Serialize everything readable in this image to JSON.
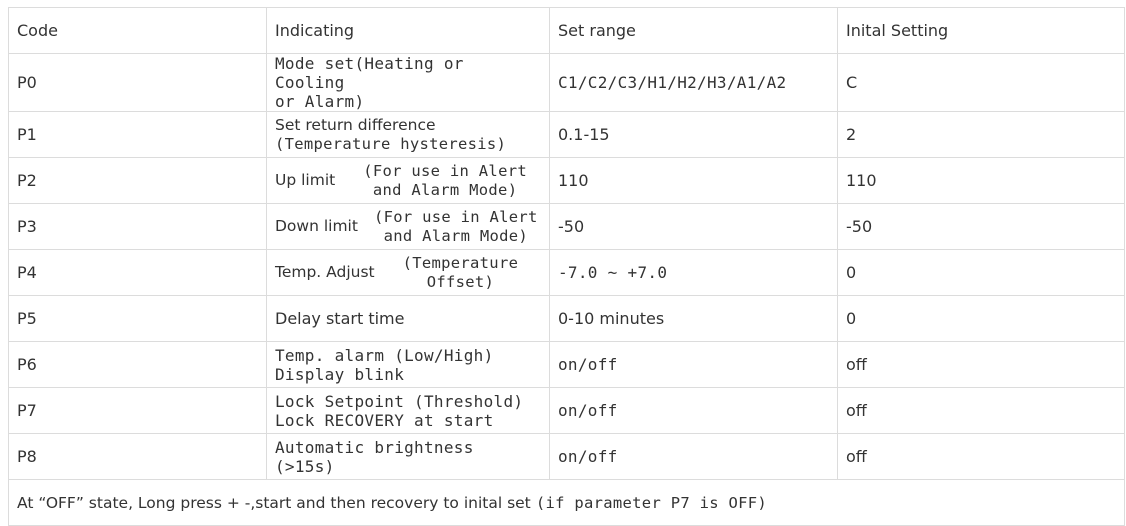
{
  "table": {
    "headers": [
      "Code",
      "Indicating",
      "Set range",
      "Inital Setting"
    ],
    "rows": [
      {
        "code": "P0",
        "indicating": {
          "main": "Mode set(Heating or Cooling",
          "cont": "or Alarm)"
        },
        "range": "C1/C2/C3/H1/H2/H3/A1/A2",
        "initial": "C"
      },
      {
        "code": "P1",
        "indicating": {
          "main": "Set return difference",
          "cont": "(Temperature hysteresis)"
        },
        "range": "0.1-15",
        "initial": "2"
      },
      {
        "code": "P2",
        "indicating": {
          "main": "Up limit",
          "note1": "(For use in Alert",
          "note2": "and Alarm Mode)"
        },
        "range": "110",
        "initial": "110"
      },
      {
        "code": "P3",
        "indicating": {
          "main": "Down limit",
          "note1": "(For use in Alert",
          "note2": "and Alarm Mode)"
        },
        "range": "-50",
        "initial": "-50"
      },
      {
        "code": "P4",
        "indicating": {
          "main": "Temp. Adjust",
          "note1": "(Temperature",
          "note2": "Offset)"
        },
        "range": "-7.0 ~ +7.0",
        "initial": "0"
      },
      {
        "code": "P5",
        "indicating": {
          "main": "Delay start time"
        },
        "range": "0-10 minutes",
        "initial": "0"
      },
      {
        "code": "P6",
        "indicating": {
          "main": "Temp. alarm (Low/High)",
          "cont": "Display blink"
        },
        "range": "on/off",
        "initial": "off"
      },
      {
        "code": "P7",
        "indicating": {
          "main": "Lock Setpoint (Threshold)",
          "cont": "Lock RECOVERY at start"
        },
        "range": "on/off",
        "initial": "off"
      },
      {
        "code": "P8",
        "indicating": {
          "main": "Automatic brightness (>15s)"
        },
        "range": "on/off",
        "initial": "off"
      }
    ],
    "footer": {
      "text": "At “OFF” state, Long press  + -,start and then recovery to inital set",
      "mono": "(if parameter P7 is OFF)"
    }
  }
}
